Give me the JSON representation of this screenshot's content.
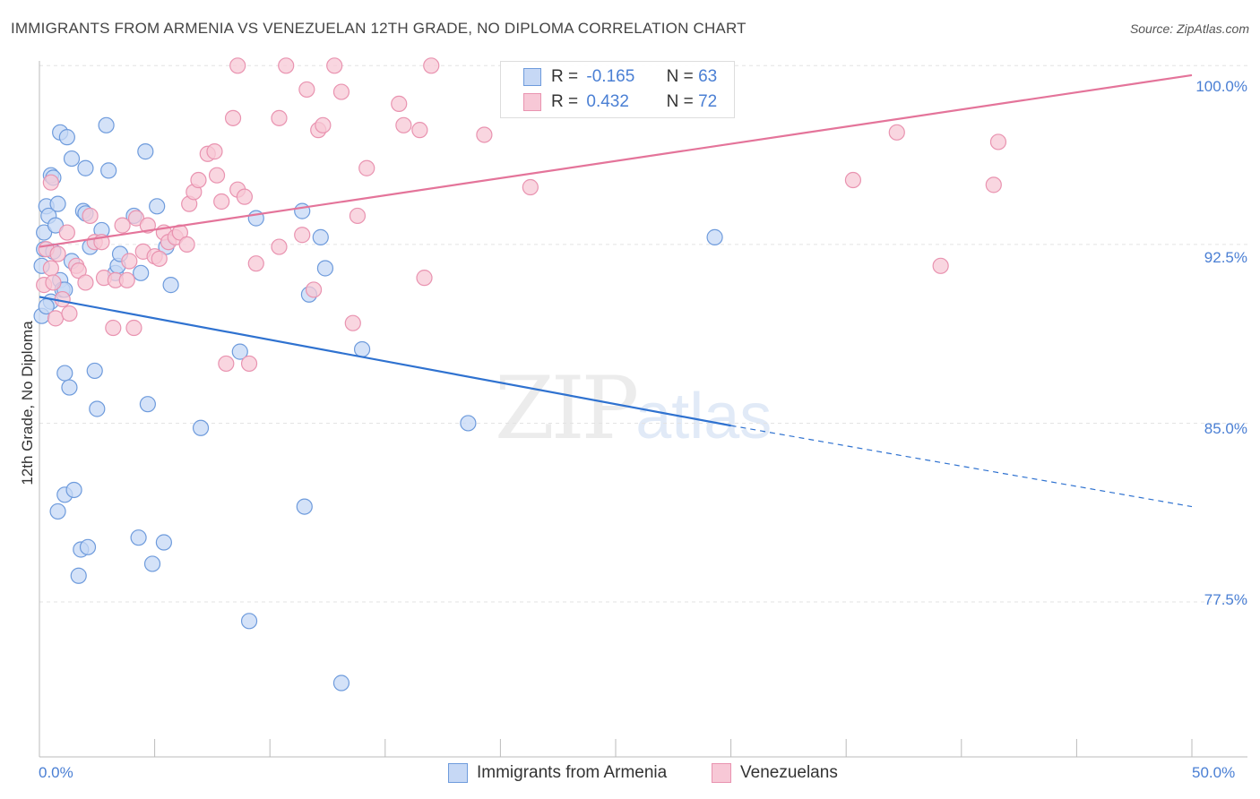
{
  "title": "IMMIGRANTS FROM ARMENIA VS VENEZUELAN 12TH GRADE, NO DIPLOMA CORRELATION CHART",
  "source": "Source: ZipAtlas.com",
  "watermark": {
    "zip": "ZIP",
    "atlas": "atlas"
  },
  "legend": {
    "r_label": "R =",
    "n_label": "N =",
    "blue": {
      "r": "-0.165",
      "n": "63"
    },
    "pink": {
      "r": "0.432",
      "n": "72"
    }
  },
  "colors": {
    "blue_fill": "#c6d8f5",
    "blue_stroke": "#6e9bdc",
    "blue_line": "#2f72d0",
    "pink_fill": "#f7c8d6",
    "pink_stroke": "#e993b0",
    "pink_line": "#e4749a",
    "tick_text": "#4a7fd4",
    "grid": "#e3e3e3"
  },
  "chart_data": {
    "type": "scatter",
    "title": "IMMIGRANTS FROM ARMENIA VS VENEZUELAN 12TH GRADE, NO DIPLOMA CORRELATION CHART",
    "xlabel": "",
    "ylabel": "12th Grade, No Diploma",
    "xlim": [
      0,
      50
    ],
    "ylim": [
      71,
      100.5
    ],
    "x_tick_labels": [
      "0.0%",
      "50.0%"
    ],
    "y_ticks": [
      {
        "value": 100.0,
        "label": "100.0%"
      },
      {
        "value": 92.5,
        "label": "92.5%"
      },
      {
        "value": 85.0,
        "label": "85.0%"
      },
      {
        "value": 77.5,
        "label": "77.5%"
      }
    ],
    "grid": true,
    "series": [
      {
        "name": "Immigrants from Armenia",
        "color": "#6e9bdc",
        "points": [
          [
            0.1,
            89.5
          ],
          [
            0.1,
            91.6
          ],
          [
            0.2,
            92.3
          ],
          [
            0.2,
            93.0
          ],
          [
            0.3,
            94.1
          ],
          [
            0.4,
            93.7
          ],
          [
            0.5,
            95.4
          ],
          [
            0.5,
            90.1
          ],
          [
            0.6,
            95.3
          ],
          [
            0.6,
            92.2
          ],
          [
            0.7,
            93.3
          ],
          [
            0.8,
            94.2
          ],
          [
            0.9,
            97.2
          ],
          [
            0.9,
            91.0
          ],
          [
            1.0,
            90.6
          ],
          [
            1.1,
            90.6
          ],
          [
            1.1,
            87.1
          ],
          [
            1.2,
            97.0
          ],
          [
            1.4,
            96.1
          ],
          [
            1.4,
            91.8
          ],
          [
            1.9,
            93.9
          ],
          [
            2.0,
            93.8
          ],
          [
            2.0,
            95.7
          ],
          [
            2.2,
            92.4
          ],
          [
            2.4,
            87.2
          ],
          [
            2.5,
            85.6
          ],
          [
            2.9,
            97.5
          ],
          [
            3.0,
            95.6
          ],
          [
            3.3,
            91.3
          ],
          [
            3.4,
            91.6
          ],
          [
            3.5,
            92.1
          ],
          [
            4.1,
            93.7
          ],
          [
            4.4,
            91.3
          ],
          [
            4.6,
            96.4
          ],
          [
            4.7,
            85.8
          ],
          [
            5.1,
            94.1
          ],
          [
            5.5,
            92.4
          ],
          [
            5.7,
            90.8
          ],
          [
            7.0,
            84.8
          ],
          [
            8.7,
            88.0
          ],
          [
            9.4,
            93.6
          ],
          [
            11.4,
            93.9
          ],
          [
            11.7,
            90.4
          ],
          [
            12.2,
            92.8
          ],
          [
            12.4,
            91.5
          ],
          [
            14.0,
            88.1
          ],
          [
            18.6,
            85.0
          ],
          [
            29.3,
            92.8
          ],
          [
            0.8,
            81.3
          ],
          [
            1.1,
            82.0
          ],
          [
            1.5,
            82.2
          ],
          [
            1.7,
            78.6
          ],
          [
            1.8,
            79.7
          ],
          [
            2.1,
            79.8
          ],
          [
            4.3,
            80.2
          ],
          [
            4.9,
            79.1
          ],
          [
            5.4,
            80.0
          ],
          [
            11.5,
            81.5
          ],
          [
            9.1,
            76.7
          ],
          [
            13.1,
            74.1
          ],
          [
            1.3,
            86.5
          ],
          [
            2.7,
            93.1
          ],
          [
            0.3,
            89.9
          ]
        ]
      },
      {
        "name": "Venezuelans",
        "color": "#e993b0",
        "points": [
          [
            0.2,
            90.8
          ],
          [
            0.3,
            92.3
          ],
          [
            0.5,
            91.5
          ],
          [
            0.6,
            90.9
          ],
          [
            0.7,
            89.4
          ],
          [
            0.8,
            92.1
          ],
          [
            1.0,
            90.2
          ],
          [
            1.2,
            93.0
          ],
          [
            1.3,
            89.6
          ],
          [
            1.6,
            91.6
          ],
          [
            1.7,
            91.4
          ],
          [
            2.0,
            90.9
          ],
          [
            2.2,
            93.7
          ],
          [
            2.4,
            92.6
          ],
          [
            2.7,
            92.6
          ],
          [
            2.8,
            91.1
          ],
          [
            3.2,
            89.0
          ],
          [
            3.3,
            91.0
          ],
          [
            3.6,
            93.3
          ],
          [
            3.9,
            91.8
          ],
          [
            4.1,
            89.0
          ],
          [
            4.2,
            93.6
          ],
          [
            4.5,
            92.2
          ],
          [
            4.7,
            93.3
          ],
          [
            5.0,
            92.0
          ],
          [
            5.2,
            91.9
          ],
          [
            5.4,
            93.0
          ],
          [
            5.6,
            92.6
          ],
          [
            5.9,
            92.8
          ],
          [
            6.1,
            93.0
          ],
          [
            6.4,
            92.5
          ],
          [
            6.5,
            94.2
          ],
          [
            6.7,
            94.7
          ],
          [
            6.9,
            95.2
          ],
          [
            7.3,
            96.3
          ],
          [
            7.6,
            96.4
          ],
          [
            7.7,
            95.4
          ],
          [
            7.9,
            94.3
          ],
          [
            8.1,
            87.5
          ],
          [
            8.4,
            97.8
          ],
          [
            8.6,
            94.8
          ],
          [
            8.9,
            94.5
          ],
          [
            9.1,
            87.5
          ],
          [
            9.4,
            91.7
          ],
          [
            8.6,
            100.0
          ],
          [
            10.4,
            97.8
          ],
          [
            10.7,
            100.0
          ],
          [
            10.4,
            92.4
          ],
          [
            11.4,
            92.9
          ],
          [
            11.6,
            99.0
          ],
          [
            11.9,
            90.6
          ],
          [
            12.1,
            97.3
          ],
          [
            12.3,
            97.5
          ],
          [
            12.8,
            100.0
          ],
          [
            13.1,
            98.9
          ],
          [
            13.6,
            89.2
          ],
          [
            13.8,
            93.7
          ],
          [
            14.2,
            95.7
          ],
          [
            15.6,
            98.4
          ],
          [
            15.8,
            97.5
          ],
          [
            16.5,
            97.3
          ],
          [
            16.7,
            91.1
          ],
          [
            17.0,
            100.0
          ],
          [
            19.3,
            97.1
          ],
          [
            21.3,
            94.9
          ],
          [
            35.3,
            95.2
          ],
          [
            37.2,
            97.2
          ],
          [
            39.1,
            91.6
          ],
          [
            41.4,
            95.0
          ],
          [
            41.6,
            96.8
          ],
          [
            0.5,
            95.1
          ],
          [
            3.8,
            91.0
          ]
        ]
      }
    ],
    "trend_lines": [
      {
        "series": "Immigrants from Armenia",
        "x0": 0.0,
        "y0": 90.3,
        "x1": 30.0,
        "y1": 84.9,
        "dashed_to_x": 50.0,
        "dashed_to_y": 81.5
      },
      {
        "series": "Venezuelans",
        "x0": 0.0,
        "y0": 92.4,
        "x1": 50.0,
        "y1": 99.6
      }
    ]
  }
}
